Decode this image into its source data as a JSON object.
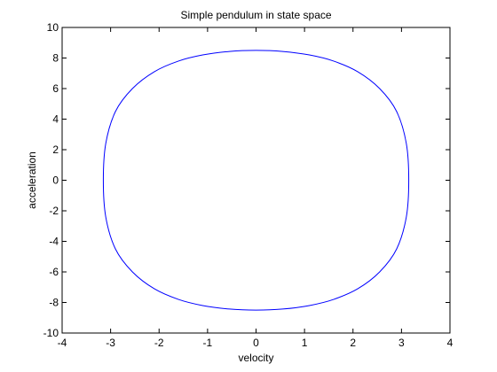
{
  "chart_data": {
    "type": "line",
    "title": "Simple pendulum in state space",
    "xlabel": "velocity",
    "ylabel": "acceleration",
    "xlim": [
      -4,
      4
    ],
    "ylim": [
      -10,
      10
    ],
    "xticks": [
      "-4",
      "-3",
      "-2",
      "-1",
      "0",
      "1",
      "2",
      "3",
      "4"
    ],
    "yticks": [
      "-10",
      "-8",
      "-6",
      "-4",
      "-2",
      "0",
      "2",
      "4",
      "6",
      "8",
      "10"
    ],
    "grid": false,
    "series": [
      {
        "color": "#0000ff",
        "x": [
          0,
          0.55,
          1.1,
          1.6,
          2.1,
          2.55,
          2.9,
          3.1,
          3.15,
          3.1,
          2.9,
          2.55,
          2.1,
          1.6,
          1.1,
          0.55,
          0,
          -0.55,
          -1.1,
          -1.6,
          -2.1,
          -2.55,
          -2.9,
          -3.1,
          -3.15,
          -3.1,
          -2.9,
          -2.55,
          -2.1,
          -1.6,
          -1.1,
          -0.55,
          0
        ],
        "y": [
          8.5,
          8.43,
          8.2,
          7.8,
          7.1,
          6.0,
          4.5,
          2.4,
          0,
          -2.4,
          -4.5,
          -6.0,
          -7.1,
          -7.8,
          -8.2,
          -8.43,
          -8.5,
          -8.43,
          -8.2,
          -7.8,
          -7.1,
          -6.0,
          -4.5,
          -2.4,
          0,
          2.4,
          4.5,
          6.0,
          7.1,
          7.8,
          8.2,
          8.43,
          8.5
        ]
      }
    ]
  }
}
